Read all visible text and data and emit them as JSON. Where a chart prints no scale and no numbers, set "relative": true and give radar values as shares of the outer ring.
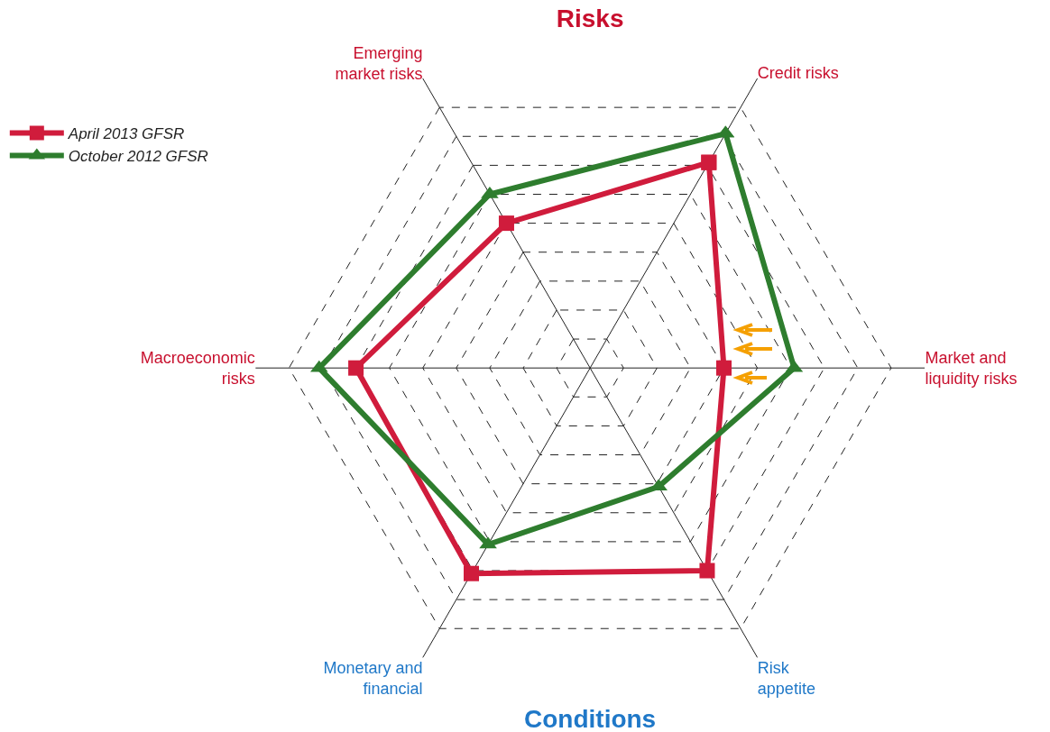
{
  "chart_data": {
    "type": "radar",
    "title": "Risks",
    "relative": true,
    "grid": true,
    "legend": "top left",
    "line_style": "solid",
    "categories": [
      "Credit risks",
      "Market and liquidity risks",
      "Risk appetite",
      "Monetary and financial",
      "Macroeconomic risks",
      "Emerging market risks"
    ],
    "series": [
      {
        "name": "April 2013 GFSR",
        "color": "#d01c3c",
        "marker": "square",
        "values": [
          0.71,
          0.4,
          0.7,
          0.71,
          0.7,
          0.5
        ]
      },
      {
        "name": "October 2012 GFSR",
        "color": "#2e7d2e",
        "marker": "triangle",
        "values": [
          0.81,
          0.61,
          0.41,
          0.61,
          0.81,
          0.6
        ]
      }
    ],
    "annotations": [
      "Conditions"
    ]
  }
}
